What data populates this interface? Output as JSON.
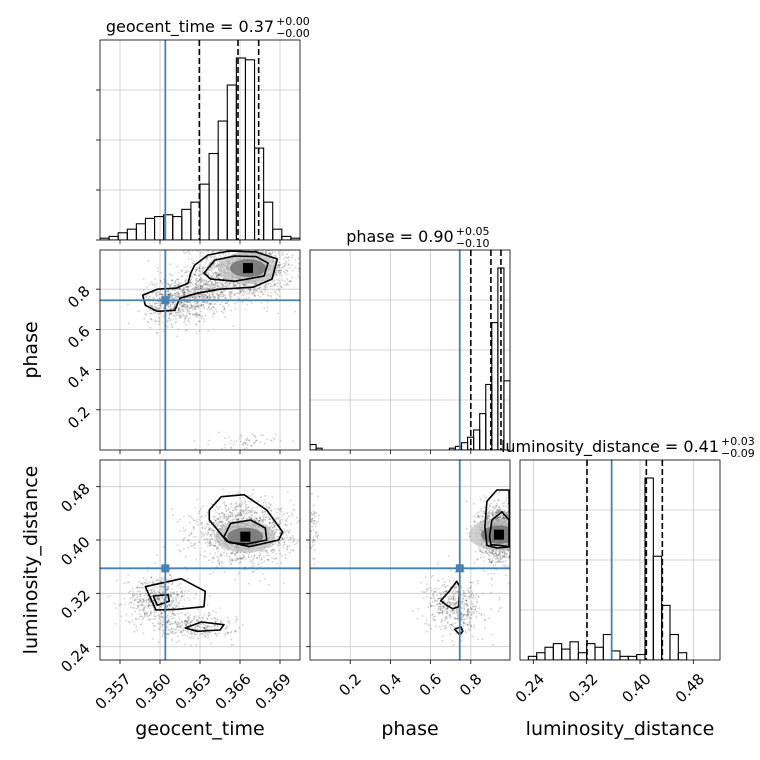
{
  "chart_data": {
    "type": "corner",
    "truth_color": "#4682b4",
    "parameters": [
      {
        "name": "geocent_time",
        "axis_label": "geocent_time",
        "ticks": [
          0.357,
          0.36,
          0.363,
          0.366,
          0.369
        ],
        "tick_labels": [
          "0.357",
          "0.360",
          "0.363",
          "0.366",
          "0.369"
        ],
        "range": [
          0.3555,
          0.3705
        ],
        "truth": 0.3604,
        "title": {
          "text": "geocent_time = 0.37",
          "sup": "+0.00",
          "sub": "−0.00"
        },
        "quantiles": [
          0.36295,
          0.36585,
          0.3674
        ],
        "hist_edges": [
          0.3555,
          0.3705
        ],
        "hist_counts": [
          1,
          2,
          4,
          6,
          9,
          12,
          13,
          14,
          13,
          17,
          21,
          31,
          48,
          66,
          86,
          101,
          100,
          51,
          21,
          6,
          2,
          1
        ]
      },
      {
        "name": "phase",
        "axis_label": "phase",
        "ticks": [
          0.2,
          0.4,
          0.6,
          0.8
        ],
        "tick_labels": [
          "0.2",
          "0.4",
          "0.6",
          "0.8"
        ],
        "range": [
          0.0,
          0.995
        ],
        "truth": 0.745,
        "title": {
          "text": "phase = 0.90",
          "sup": "+0.05",
          "sub": "−0.10"
        },
        "quantiles": [
          0.8,
          0.9,
          0.95
        ],
        "hist_edges": [
          0.0,
          0.995
        ],
        "hist_counts": [
          3,
          1,
          0,
          0,
          0,
          0,
          0,
          0,
          0,
          0,
          0,
          0,
          0,
          0,
          0,
          0,
          0,
          0,
          0,
          0,
          0,
          0,
          0,
          1,
          2,
          4,
          7,
          11,
          20,
          36,
          70,
          100,
          38
        ]
      },
      {
        "name": "luminosity_distance",
        "axis_label": "luminosity_distance",
        "ticks": [
          0.24,
          0.32,
          0.4,
          0.48
        ],
        "tick_labels": [
          "0.24",
          "0.32",
          "0.40",
          "0.48"
        ],
        "range": [
          0.22,
          0.52
        ],
        "truth": 0.3575,
        "title": {
          "text": "luminosity_distance = 0.41",
          "sup": "+0.03",
          "sub": "−0.09"
        },
        "quantiles": [
          0.3205,
          0.4095,
          0.4335
        ],
        "hist_edges": [
          0.22,
          0.52
        ],
        "hist_counts": [
          0,
          2,
          4,
          7,
          9,
          6,
          10,
          4,
          9,
          7,
          14,
          5,
          2,
          2,
          3,
          100,
          57,
          30,
          14,
          4,
          0,
          0,
          0,
          0
        ]
      }
    ],
    "panels_2d": [
      {
        "x": "geocent_time",
        "y": "phase",
        "blobs": [
          {
            "cx": 0.3664,
            "cy": 0.905,
            "rx": 0.0018,
            "ry": 0.075,
            "w": 1500
          },
          {
            "cx": 0.3612,
            "cy": 0.74,
            "rx": 0.0012,
            "ry": 0.06,
            "w": 600
          },
          {
            "cx": 0.3635,
            "cy": 0.79,
            "rx": 0.0012,
            "ry": 0.05,
            "w": 350
          },
          {
            "cx": 0.3663,
            "cy": 0.04,
            "rx": 0.0012,
            "ry": 0.02,
            "w": 60
          }
        ],
        "contours": [
          [
            [
              0.3633,
              0.88
            ],
            [
              0.3641,
              0.945
            ],
            [
              0.3656,
              0.965
            ],
            [
              0.3672,
              0.962
            ],
            [
              0.3681,
              0.93
            ],
            [
              0.3678,
              0.865
            ],
            [
              0.3656,
              0.84
            ],
            [
              0.3638,
              0.85
            ]
          ],
          [
            [
              0.3626,
              0.92
            ],
            [
              0.3636,
              0.97
            ],
            [
              0.3652,
              0.99
            ],
            [
              0.3672,
              0.985
            ],
            [
              0.3688,
              0.95
            ],
            [
              0.3684,
              0.85
            ],
            [
              0.367,
              0.81
            ],
            [
              0.3645,
              0.8
            ],
            [
              0.3628,
              0.78
            ],
            [
              0.3615,
              0.755
            ],
            [
              0.3611,
              0.695
            ],
            [
              0.3598,
              0.69
            ],
            [
              0.3589,
              0.72
            ],
            [
              0.3587,
              0.77
            ],
            [
              0.3598,
              0.8
            ],
            [
              0.3612,
              0.805
            ],
            [
              0.3621,
              0.83
            ],
            [
              0.3623,
              0.88
            ]
          ]
        ],
        "peak": [
          0.3666,
          0.905
        ]
      },
      {
        "x": "geocent_time",
        "y": "luminosity_distance",
        "blobs": [
          {
            "cx": 0.3663,
            "cy": 0.41,
            "rx": 0.0018,
            "ry": 0.022,
            "w": 1400
          },
          {
            "cx": 0.3598,
            "cy": 0.31,
            "rx": 0.0012,
            "ry": 0.018,
            "w": 500
          },
          {
            "cx": 0.3625,
            "cy": 0.27,
            "rx": 0.0015,
            "ry": 0.01,
            "w": 300
          }
        ],
        "contours": [
          [
            [
              0.3648,
              0.405
            ],
            [
              0.3653,
              0.425
            ],
            [
              0.3668,
              0.43
            ],
            [
              0.3679,
              0.418
            ],
            [
              0.368,
              0.4
            ],
            [
              0.3665,
              0.394
            ],
            [
              0.3652,
              0.396
            ]
          ],
          [
            [
              0.3637,
              0.445
            ],
            [
              0.3646,
              0.465
            ],
            [
              0.3663,
              0.468
            ],
            [
              0.368,
              0.445
            ],
            [
              0.3692,
              0.412
            ],
            [
              0.3689,
              0.4
            ],
            [
              0.3667,
              0.39
            ],
            [
              0.365,
              0.398
            ],
            [
              0.3642,
              0.418
            ],
            [
              0.3637,
              0.43
            ]
          ],
          [
            [
              0.3598,
              0.302
            ],
            [
              0.3595,
              0.316
            ],
            [
              0.3606,
              0.318
            ],
            [
              0.3607,
              0.308
            ]
          ],
          [
            [
              0.3597,
              0.295
            ],
            [
              0.3589,
              0.33
            ],
            [
              0.3616,
              0.342
            ],
            [
              0.3634,
              0.323
            ],
            [
              0.3633,
              0.3
            ],
            [
              0.3613,
              0.296
            ]
          ],
          [
            [
              0.3619,
              0.268
            ],
            [
              0.3631,
              0.277
            ],
            [
              0.3648,
              0.273
            ],
            [
              0.3645,
              0.265
            ],
            [
              0.3628,
              0.263
            ]
          ]
        ],
        "peak": [
          0.3664,
          0.405
        ]
      },
      {
        "x": "phase",
        "y": "luminosity_distance",
        "blobs": [
          {
            "cx": 0.94,
            "cy": 0.41,
            "rx": 0.05,
            "ry": 0.022,
            "w": 1400
          },
          {
            "cx": 0.72,
            "cy": 0.3,
            "rx": 0.07,
            "ry": 0.02,
            "w": 500
          },
          {
            "cx": 0.02,
            "cy": 0.41,
            "rx": 0.012,
            "ry": 0.02,
            "w": 60
          }
        ],
        "contours": [
          [
            [
              0.893,
              0.405
            ],
            [
              0.905,
              0.43
            ],
            [
              0.955,
              0.442
            ],
            [
              0.99,
              0.43
            ],
            [
              0.99,
              0.39
            ],
            [
              0.94,
              0.392
            ],
            [
              0.9,
              0.393
            ]
          ],
          [
            [
              0.87,
              0.42
            ],
            [
              0.88,
              0.458
            ],
            [
              0.93,
              0.475
            ],
            [
              0.99,
              0.475
            ],
            [
              0.995,
              0.39
            ],
            [
              0.93,
              0.388
            ],
            [
              0.88,
              0.392
            ]
          ],
          [
            [
              0.65,
              0.309
            ],
            [
              0.69,
              0.322
            ],
            [
              0.73,
              0.338
            ],
            [
              0.745,
              0.33
            ],
            [
              0.74,
              0.3
            ],
            [
              0.71,
              0.297
            ],
            [
              0.68,
              0.302
            ]
          ],
          [
            [
              0.72,
              0.266
            ],
            [
              0.75,
              0.27
            ],
            [
              0.76,
              0.263
            ],
            [
              0.745,
              0.258
            ]
          ]
        ],
        "peak": [
          0.94,
          0.408
        ]
      }
    ]
  }
}
